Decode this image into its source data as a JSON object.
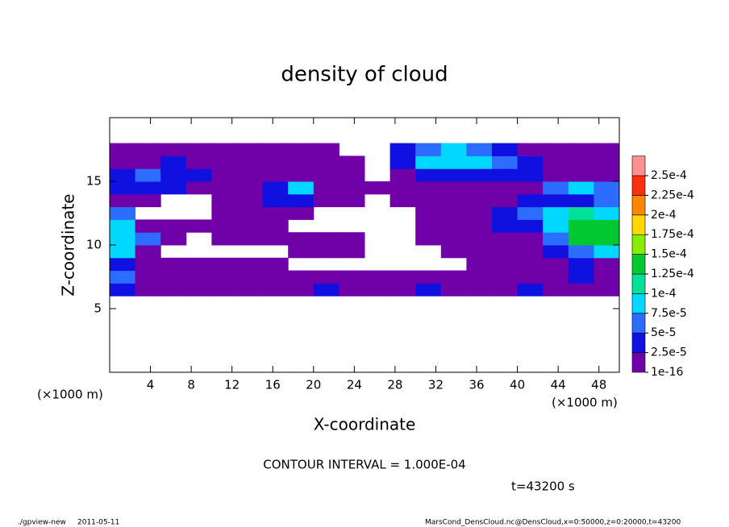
{
  "chart_data": {
    "type": "contour",
    "title": "density of cloud",
    "x_label": "X-coordinate",
    "y_label": "Z-coordinate",
    "x_unit": "(×1000 m)",
    "y_unit": "(×1000 m)",
    "contour_interval": "CONTOUR INTERVAL = 1.000E-04",
    "time_label": "t=43200 s",
    "footer_left": "./gpview-new",
    "footer_date": "2011-05-11",
    "footer_right": "MarsCond_DensCloud.nc@DensCloud,x=0:50000,z=0:20000,t=43200",
    "xlim": [
      0,
      50
    ],
    "ylim": [
      0,
      20
    ],
    "xticks": [
      4,
      8,
      12,
      16,
      20,
      24,
      28,
      32,
      36,
      40,
      44,
      48
    ],
    "yticks": [
      5,
      10,
      15
    ],
    "x": [
      1.25,
      3.75,
      6.25,
      8.75,
      11.25,
      13.75,
      16.25,
      18.75,
      21.25,
      23.75,
      26.25,
      28.75,
      31.25,
      33.75,
      36.25,
      38.75,
      41.25,
      43.75,
      46.25,
      48.75
    ],
    "y": [
      6.5,
      7.5,
      8.5,
      9.5,
      10.5,
      11.5,
      12.5,
      13.5,
      14.5,
      15.5,
      16.5,
      17.5
    ],
    "z": [
      [
        3e-05,
        1e-05,
        1e-05,
        1e-05,
        1e-05,
        1e-05,
        1e-05,
        1e-05,
        3e-05,
        1e-05,
        1e-05,
        1e-05,
        3e-05,
        1e-05,
        1e-05,
        1e-05,
        3e-05,
        1e-05,
        1e-05,
        1e-05
      ],
      [
        6e-05,
        1e-05,
        1e-05,
        1e-05,
        1e-05,
        1e-05,
        1e-05,
        1e-05,
        1e-05,
        1e-05,
        1e-05,
        1e-05,
        1e-05,
        1e-05,
        1e-05,
        1e-05,
        1e-05,
        1e-05,
        3e-05,
        1e-05
      ],
      [
        3e-05,
        1e-05,
        1e-05,
        1e-05,
        1e-05,
        1e-05,
        1e-05,
        null,
        null,
        null,
        null,
        null,
        null,
        null,
        1e-05,
        1e-05,
        1e-05,
        1e-05,
        3e-05,
        1e-05
      ],
      [
        9e-05,
        1e-05,
        null,
        null,
        null,
        null,
        null,
        1e-05,
        1e-05,
        1e-05,
        null,
        null,
        null,
        1e-05,
        1e-05,
        1e-05,
        1e-05,
        3e-05,
        6e-05,
        9e-05
      ],
      [
        9e-05,
        6e-05,
        1e-05,
        null,
        1e-05,
        1e-05,
        1e-05,
        1e-05,
        1e-05,
        1e-05,
        null,
        null,
        1e-05,
        1e-05,
        1e-05,
        1e-05,
        1e-05,
        6e-05,
        0.00014,
        0.00014
      ],
      [
        9e-05,
        1e-05,
        1e-05,
        1e-05,
        1e-05,
        1e-05,
        1e-05,
        null,
        null,
        null,
        null,
        null,
        1e-05,
        1e-05,
        1e-05,
        3e-05,
        3e-05,
        9e-05,
        0.00014,
        0.00014
      ],
      [
        6e-05,
        null,
        null,
        null,
        1e-05,
        1e-05,
        1e-05,
        1e-05,
        null,
        null,
        null,
        null,
        1e-05,
        1e-05,
        1e-05,
        3e-05,
        6e-05,
        9e-05,
        0.00011,
        9e-05
      ],
      [
        1e-05,
        1e-05,
        null,
        null,
        1e-05,
        1e-05,
        3e-05,
        3e-05,
        1e-05,
        1e-05,
        null,
        1e-05,
        1e-05,
        1e-05,
        1e-05,
        1e-05,
        3e-05,
        3e-05,
        3e-05,
        6e-05
      ],
      [
        3e-05,
        3e-05,
        3e-05,
        1e-05,
        1e-05,
        1e-05,
        3e-05,
        9e-05,
        1e-05,
        1e-05,
        1e-05,
        1e-05,
        1e-05,
        1e-05,
        1e-05,
        1e-05,
        1e-05,
        6e-05,
        9e-05,
        6e-05
      ],
      [
        3e-05,
        6e-05,
        3e-05,
        3e-05,
        1e-05,
        1e-05,
        1e-05,
        1e-05,
        1e-05,
        1e-05,
        null,
        1e-05,
        3e-05,
        3e-05,
        3e-05,
        3e-05,
        3e-05,
        1e-05,
        1e-05,
        1e-05
      ],
      [
        1e-05,
        1e-05,
        3e-05,
        1e-05,
        1e-05,
        1e-05,
        1e-05,
        1e-05,
        1e-05,
        1e-05,
        null,
        3e-05,
        9e-05,
        9e-05,
        9e-05,
        6e-05,
        3e-05,
        1e-05,
        1e-05,
        1e-05
      ],
      [
        1e-05,
        1e-05,
        1e-05,
        1e-05,
        1e-05,
        1e-05,
        1e-05,
        1e-05,
        1e-05,
        null,
        null,
        3e-05,
        6e-05,
        9e-05,
        6e-05,
        3e-05,
        1e-05,
        1e-05,
        1e-05,
        1e-05
      ]
    ],
    "levels": [
      {
        "value": 1e-16,
        "label": "1e-16"
      },
      {
        "value": 2.5e-05,
        "label": "2.5e-5"
      },
      {
        "value": 5e-05,
        "label": "5e-5"
      },
      {
        "value": 7.5e-05,
        "label": "7.5e-5"
      },
      {
        "value": 0.0001,
        "label": "1e-4"
      },
      {
        "value": 0.000125,
        "label": "1.25e-4"
      },
      {
        "value": 0.00015,
        "label": "1.5e-4"
      },
      {
        "value": 0.000175,
        "label": "1.75e-4"
      },
      {
        "value": 0.0002,
        "label": "2e-4"
      },
      {
        "value": 0.000225,
        "label": "2.25e-4"
      },
      {
        "value": 0.00025,
        "label": "2.5e-4"
      }
    ],
    "colors": [
      "#7000a8",
      "#1010e0",
      "#2c6cff",
      "#00d8ff",
      "#00e098",
      "#00c830",
      "#88ee00",
      "#ffd800",
      "#ff8800",
      "#ff3010",
      "#ff9090"
    ]
  }
}
